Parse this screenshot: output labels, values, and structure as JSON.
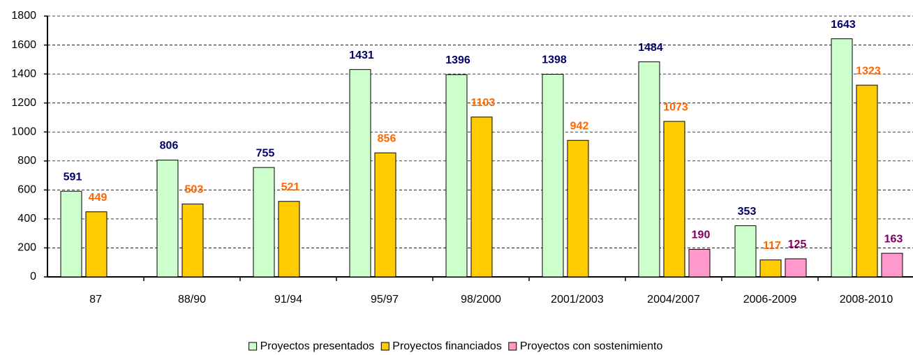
{
  "chart_data": {
    "type": "bar",
    "categories": [
      "87",
      "88/90",
      "91/94",
      "95/97",
      "98/2000",
      "2001/2003",
      "2004/2007",
      "2006-2009",
      "2008-2010"
    ],
    "series": [
      {
        "name": "Proyectos presentados",
        "color": "#ccffcc",
        "label_color": "#000066",
        "values": [
          591,
          806,
          755,
          1431,
          1396,
          1398,
          1484,
          353,
          1643
        ]
      },
      {
        "name": "Proyectos financiados",
        "color": "#ffcc00",
        "label_color": "#ff6600",
        "values": [
          449,
          503,
          521,
          856,
          1103,
          942,
          1073,
          117,
          1323
        ]
      },
      {
        "name": "Proyectos con sostenimiento",
        "color": "#ff99cc",
        "label_color": "#800060",
        "values": [
          null,
          null,
          null,
          null,
          null,
          null,
          190,
          125,
          163
        ]
      }
    ],
    "ylim": [
      0,
      1800
    ],
    "yticks": [
      0,
      200,
      400,
      600,
      800,
      1000,
      1200,
      1400,
      1600,
      1800
    ],
    "grid": true,
    "legend": "bottom"
  }
}
